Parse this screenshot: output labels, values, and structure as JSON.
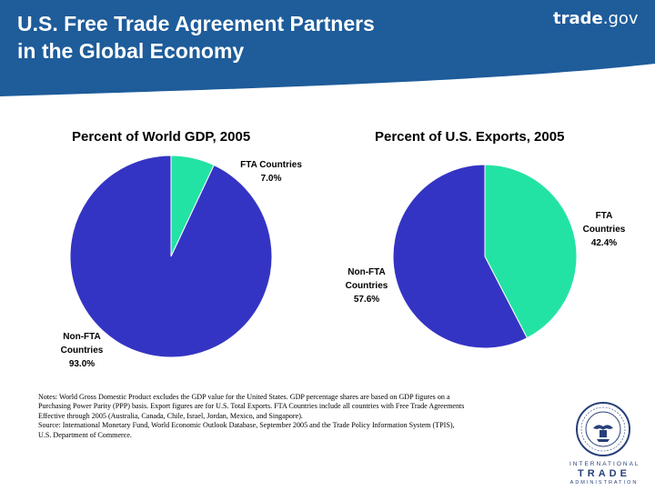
{
  "header": {
    "title_line1": "U.S. Free Trade Agreement Partners",
    "title_line2": "in the Global Economy",
    "brand_bold": "trade",
    "brand_suffix": ".gov",
    "color": "#1e5c9a"
  },
  "chart_data": [
    {
      "type": "pie",
      "title": "Percent of World GDP, 2005",
      "slices": [
        {
          "label": "FTA Countries",
          "value": 7.0,
          "value_label": "7.0%",
          "color": "#23e3a4"
        },
        {
          "label": "Non-FTA Countries",
          "value": 93.0,
          "value_label": "93.0%",
          "color": "#3434c4"
        }
      ],
      "start": "12 o'clock, clockwise"
    },
    {
      "type": "pie",
      "title": "Percent of U.S. Exports, 2005",
      "slices": [
        {
          "label": "FTA Countries",
          "value": 42.4,
          "value_label": "42.4%",
          "color": "#23e3a4"
        },
        {
          "label": "Non-FTA Countries",
          "value": 57.6,
          "value_label": "57.6%",
          "color": "#3434c4"
        }
      ],
      "start": "12 o'clock, clockwise"
    }
  ],
  "notes": {
    "line1": "Notes:  World Gross Domestic Product excludes the GDP value for the United States.  GDP percentage shares are based on GDP figures on a",
    "line2": "Purchasing Power Parity (PPP) basis. Export figures are for U.S. Total Exports.  FTA Countries include all countries with Free Trade Agreements",
    "line3": "Effective through 2005 (Australia, Canada, Chile, Israel, Jordan, Mexico, and Singapore).",
    "line4": "Source:  International Monetary Fund, World Economic Outlook Database, September 2005 and the Trade Policy Information System (TPIS),",
    "line5": "U.S. Department of Commerce."
  },
  "logo": {
    "line1": "INTERNATIONAL",
    "line2": "TRADE",
    "line3": "ADMINISTRATION"
  }
}
